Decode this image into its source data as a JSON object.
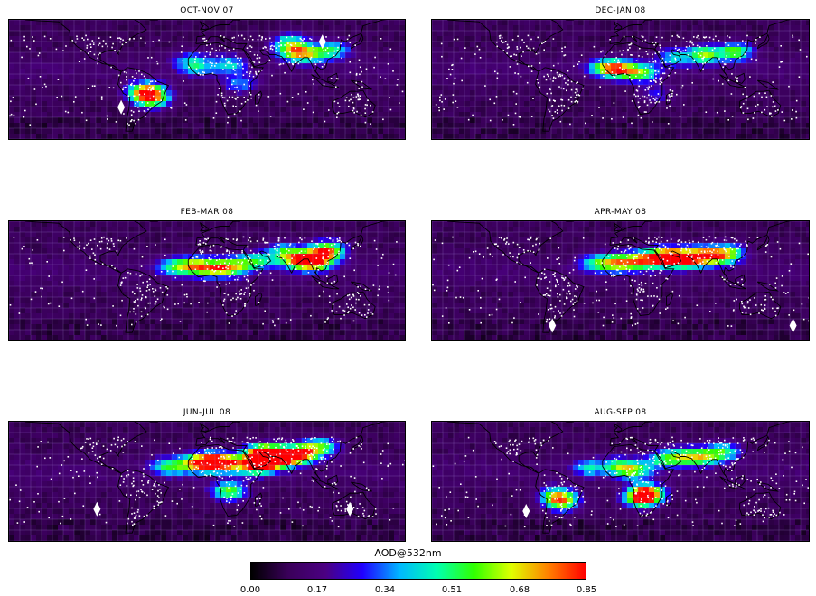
{
  "panels": [
    {
      "title": "OCT-NOV 07",
      "hotspots": [
        [
          -55,
          -12,
          0.72
        ],
        [
          -50,
          -20,
          0.55
        ],
        [
          20,
          15,
          0.35
        ],
        [
          -10,
          12,
          0.28
        ],
        [
          80,
          28,
          0.55
        ],
        [
          115,
          30,
          0.42
        ],
        [
          75,
          38,
          0.38
        ],
        [
          95,
          25,
          0.35
        ],
        [
          -15,
          20,
          0.25
        ],
        [
          30,
          -5,
          0.3
        ]
      ],
      "markers": [
        [
          -78,
          -28
        ],
        [
          105,
          38
        ]
      ]
    },
    {
      "title": "DEC-JAN 08",
      "hotspots": [
        [
          0,
          10,
          0.55
        ],
        [
          20,
          6,
          0.48
        ],
        [
          -15,
          12,
          0.45
        ],
        [
          80,
          25,
          0.55
        ],
        [
          110,
          28,
          0.55
        ],
        [
          50,
          22,
          0.35
        ],
        [
          35,
          -15,
          0.22
        ]
      ],
      "markers": []
    },
    {
      "title": "FEB-MAR 08",
      "hotspots": [
        [
          -10,
          15,
          0.55
        ],
        [
          10,
          12,
          0.5
        ],
        [
          25,
          15,
          0.42
        ],
        [
          45,
          20,
          0.4
        ],
        [
          80,
          22,
          0.5
        ],
        [
          95,
          18,
          0.58
        ],
        [
          105,
          25,
          0.5
        ],
        [
          110,
          32,
          0.48
        ],
        [
          -30,
          14,
          0.4
        ],
        [
          70,
          30,
          0.35
        ]
      ],
      "markers": []
    },
    {
      "title": "APR-MAY 08",
      "hotspots": [
        [
          -5,
          18,
          0.55
        ],
        [
          15,
          20,
          0.48
        ],
        [
          45,
          25,
          0.68
        ],
        [
          60,
          22,
          0.58
        ],
        [
          75,
          25,
          0.55
        ],
        [
          90,
          25,
          0.5
        ],
        [
          105,
          28,
          0.45
        ],
        [
          30,
          22,
          0.42
        ],
        [
          -25,
          18,
          0.35
        ]
      ],
      "markers": [
        [
          -65,
          -45
        ],
        [
          165,
          -45
        ]
      ]
    },
    {
      "title": "JUN-JUL 08",
      "hotspots": [
        [
          -10,
          18,
          0.55
        ],
        [
          5,
          20,
          0.68
        ],
        [
          20,
          18,
          0.55
        ],
        [
          55,
          22,
          0.82
        ],
        [
          50,
          28,
          0.7
        ],
        [
          65,
          25,
          0.62
        ],
        [
          45,
          15,
          0.55
        ],
        [
          80,
          25,
          0.5
        ],
        [
          90,
          30,
          0.45
        ],
        [
          20,
          -10,
          0.55
        ],
        [
          -35,
          15,
          0.45
        ],
        [
          105,
          35,
          0.42
        ]
      ],
      "markers": [
        [
          -100,
          -28
        ],
        [
          130,
          -28
        ]
      ]
    },
    {
      "title": "AUG-SEP 08",
      "hotspots": [
        [
          25,
          -12,
          0.75
        ],
        [
          20,
          -18,
          0.6
        ],
        [
          -60,
          -15,
          0.55
        ],
        [
          -55,
          -22,
          0.45
        ],
        [
          0,
          15,
          0.45
        ],
        [
          15,
          10,
          0.4
        ],
        [
          40,
          22,
          0.4
        ],
        [
          60,
          25,
          0.45
        ],
        [
          80,
          25,
          0.5
        ],
        [
          100,
          30,
          0.42
        ],
        [
          -30,
          14,
          0.35
        ]
      ],
      "markers": [
        [
          -90,
          -30
        ]
      ]
    }
  ],
  "colorbar": {
    "title": "AOD@532nm",
    "min": 0.0,
    "max": 0.85,
    "tick_labels": [
      "0.00",
      "0.17",
      "0.34",
      "0.51",
      "0.68",
      "0.85"
    ],
    "colormap": [
      "#000000",
      "#3a005a",
      "#4b0082",
      "#2000ff",
      "#00b8ff",
      "#00ffb0",
      "#30ff00",
      "#e0ff00",
      "#ff8000",
      "#ff0000"
    ]
  },
  "map_colors": {
    "background": "#3d0a5c",
    "grid": "#b090e8",
    "coast": "#000000",
    "points": "#ffffff"
  }
}
